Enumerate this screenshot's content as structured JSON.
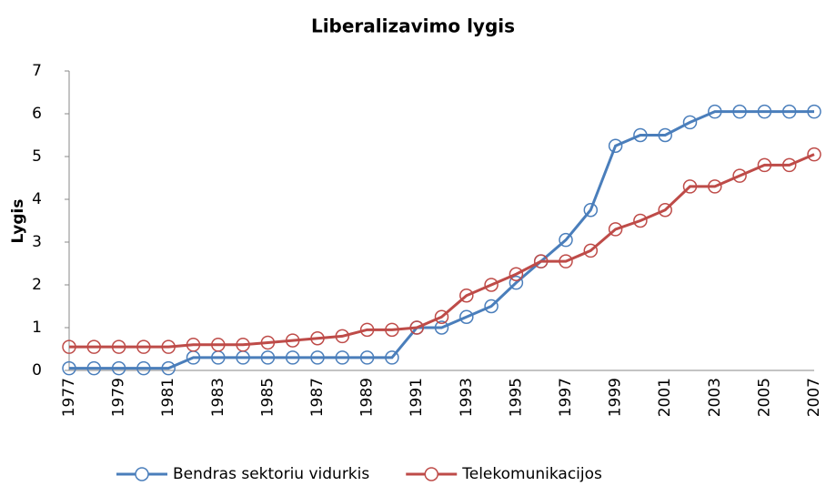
{
  "chart_data": {
    "type": "line",
    "title": "Liberalizavimo lygis",
    "y_label": "Lygis",
    "categories": [
      "1977",
      null,
      "1979",
      null,
      "1981",
      null,
      "1983",
      null,
      "1985",
      null,
      "1987",
      null,
      "1989",
      null,
      "1991",
      null,
      "1993",
      null,
      "1995",
      null,
      "1997",
      null,
      "1999",
      null,
      "2001",
      null,
      "2003",
      null,
      "2005",
      null,
      "2007"
    ],
    "series": [
      {
        "name": "Bendras sektoriu vidurkis",
        "color": "#4a7ebb",
        "values": [
          0.05,
          0.05,
          0.05,
          0.05,
          0.05,
          0.3,
          0.3,
          0.3,
          0.3,
          0.3,
          0.3,
          0.3,
          0.3,
          0.3,
          1.0,
          1.0,
          1.25,
          1.5,
          2.05,
          2.55,
          3.05,
          3.75,
          5.25,
          5.5,
          5.5,
          5.8,
          6.05,
          6.05,
          6.05,
          6.05,
          6.05
        ]
      },
      {
        "name": "Telekomunikacijos",
        "color": "#be4b48",
        "values": [
          0.55,
          0.55,
          0.55,
          0.55,
          0.55,
          0.6,
          0.6,
          0.6,
          0.65,
          0.7,
          0.75,
          0.8,
          0.95,
          0.95,
          1.0,
          1.25,
          1.75,
          2.0,
          2.25,
          2.55,
          2.55,
          2.8,
          3.3,
          3.5,
          3.75,
          4.3,
          4.3,
          4.55,
          4.8,
          4.8,
          5.05
        ]
      }
    ],
    "ylim": [
      0,
      7
    ],
    "yticks": [
      0,
      1,
      2,
      3,
      4,
      5,
      6,
      7
    ],
    "grid": false,
    "legend": "bottom"
  }
}
